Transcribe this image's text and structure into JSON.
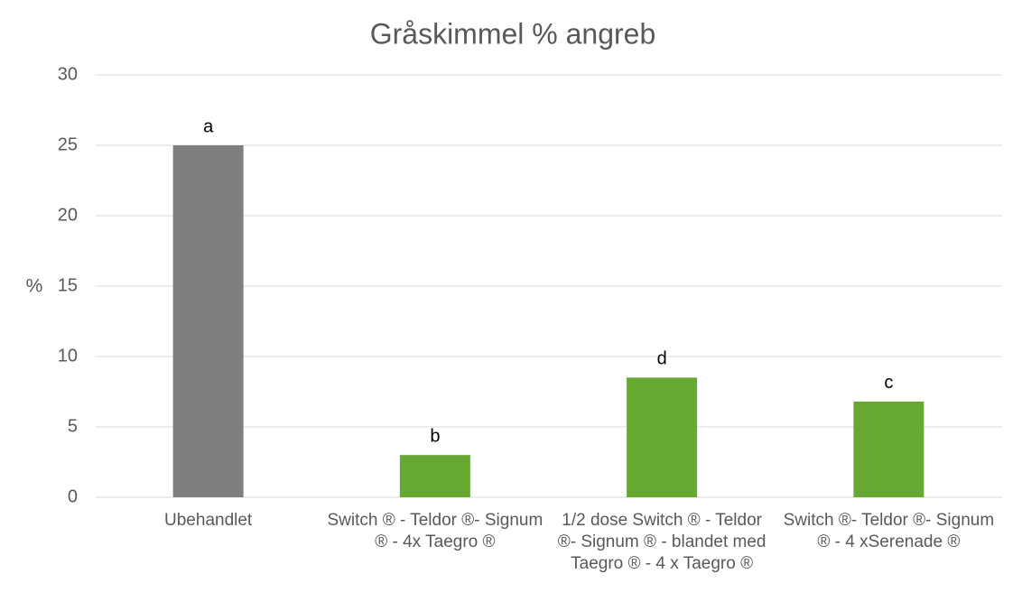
{
  "chart_data": {
    "type": "bar",
    "title": "Gråskimmel % angreb",
    "y_label": "%",
    "categories": [
      "Ubehandlet",
      "Switch ® - Teldor ®- Signum ® - 4x Taegro ®",
      "1/2 dose Switch ® - Teldor ®- Signum ® - blandet med Taegro ® - 4 x Taegro ®",
      "Switch ®- Teldor ®- Signum ® - 4 xSerenade ®"
    ],
    "values": [
      25,
      3,
      8.5,
      6.8
    ],
    "colors": [
      "#7f7f7f",
      "#66a832",
      "#66a832",
      "#66a832"
    ],
    "annotations": [
      "a",
      "b",
      "d",
      "c"
    ],
    "ylim": [
      0,
      30
    ],
    "yticks": [
      0,
      5,
      10,
      15,
      20,
      25,
      30
    ],
    "grid": true
  }
}
